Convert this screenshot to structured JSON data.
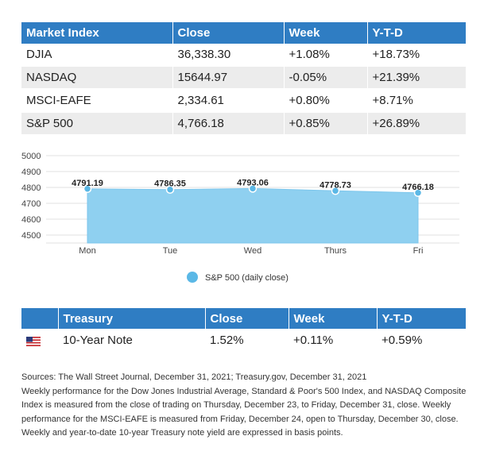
{
  "market_table": {
    "headers": [
      "Market Index",
      "Close",
      "Week",
      "Y-T-D"
    ],
    "rows": [
      [
        "DJIA",
        "36,338.30",
        "+1.08%",
        "+18.73%"
      ],
      [
        "NASDAQ",
        "15644.97",
        "-0.05%",
        "+21.39%"
      ],
      [
        "MSCI-EAFE",
        "2,334.61",
        "+0.80%",
        "+8.71%"
      ],
      [
        "S&P 500",
        "4,766.18",
        "+0.85%",
        "+26.89%"
      ]
    ]
  },
  "chart_data": {
    "type": "area",
    "categories": [
      "Mon",
      "Tue",
      "Wed",
      "Thurs",
      "Fri"
    ],
    "series": [
      {
        "name": "S&P 500 (daily close)",
        "values": [
          4791.19,
          4786.35,
          4793.06,
          4778.73,
          4766.18
        ]
      }
    ],
    "data_labels": [
      "4791.19",
      "4786.35",
      "4793.06",
      "4778.73",
      "4766.18"
    ],
    "y_ticks": [
      "4500",
      "4600",
      "4700",
      "4800",
      "4900",
      "5000"
    ],
    "ylim": [
      4450,
      5000
    ],
    "grid": true,
    "legend": "bottom-center",
    "color": "#8fd0f0",
    "marker_color": "#5bb8e6"
  },
  "treasury_table": {
    "headers": [
      "",
      "Treasury",
      "Close",
      "Week",
      "Y-T-D"
    ],
    "row": {
      "flag_icon": "us-flag-icon",
      "name": "10-Year Note",
      "close": "1.52%",
      "week": "+0.11%",
      "ytd": "+0.59%"
    }
  },
  "notes": {
    "sources": "Sources: The Wall Street Journal, December 31, 2021; Treasury.gov, December 31, 2021",
    "body": "Weekly performance for the Dow Jones Industrial Average, Standard & Poor's 500 Index, and NASDAQ Composite Index is measured from the close of trading on Thursday, December 23, to Friday, December 31, close. Weekly performance for the MSCI-EAFE is measured from Friday, December 24, open to Thursday, December 30, close. Weekly and year-to-date 10-year Treasury note yield are expressed in basis points."
  }
}
